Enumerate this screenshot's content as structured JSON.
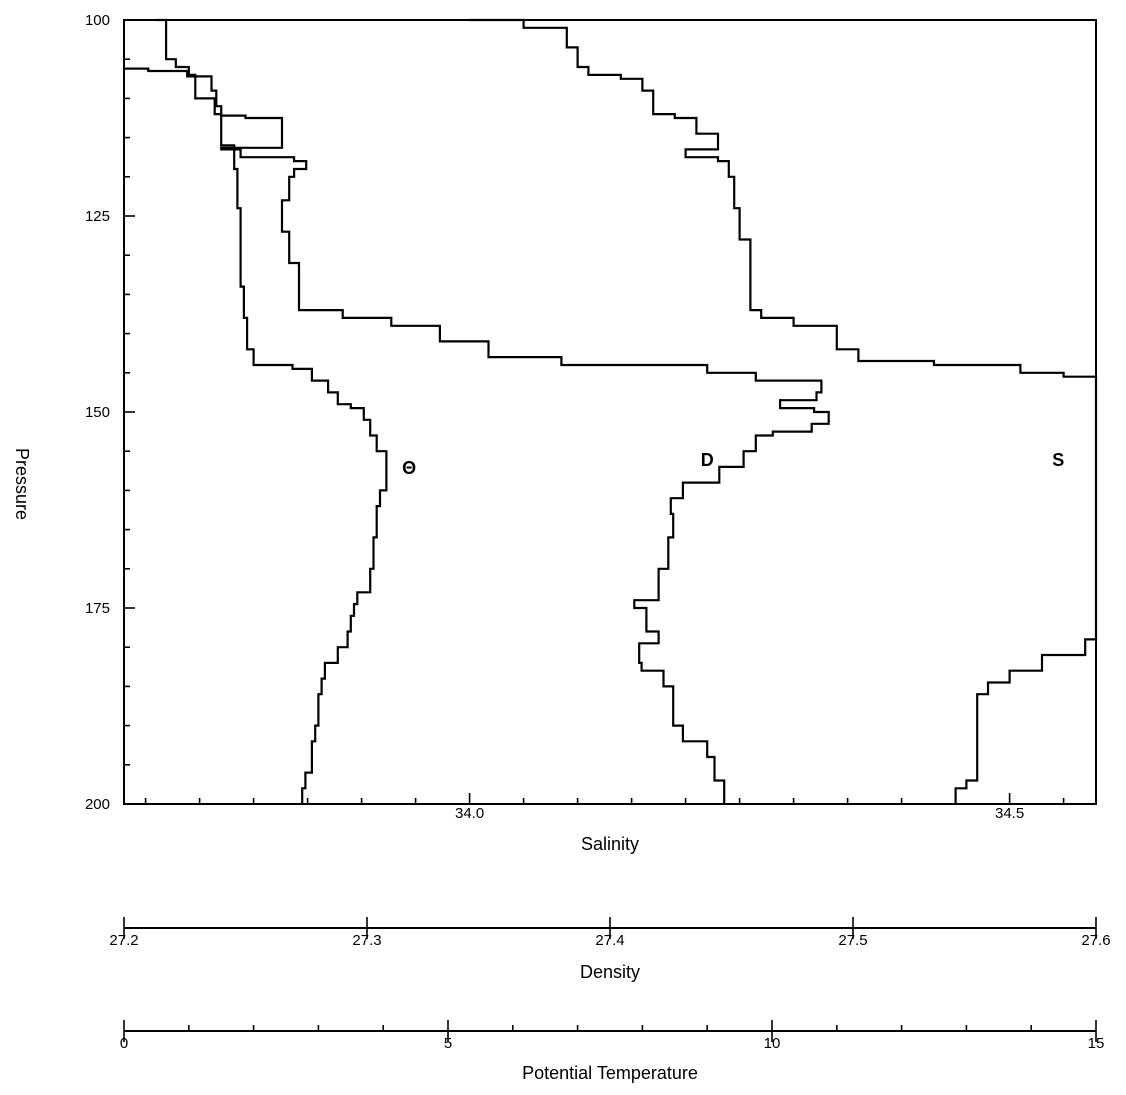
{
  "chart_data": {
    "type": "line",
    "grid": false,
    "pressure_axis": {
      "label": "Pressure",
      "range": [
        100,
        200
      ],
      "inverted": true,
      "ticks": [
        "100",
        "125",
        "150",
        "175",
        "200"
      ],
      "minor_step": 5
    },
    "salinity_axis": {
      "label": "Salinity",
      "range": [
        33.68,
        34.58
      ],
      "major_ticks": [
        34.0,
        34.5
      ],
      "tick_labels": [
        "34.0",
        "34.5"
      ],
      "minor_step": 0.05
    },
    "density_axis": {
      "label": "Density",
      "range": [
        27.2,
        27.6
      ],
      "ticks": [
        27.2,
        27.3,
        27.4,
        27.5,
        27.6
      ],
      "tick_labels": [
        "27.2",
        "27.3",
        "27.4",
        "27.5",
        "27.6"
      ]
    },
    "temperature_axis": {
      "label": "Potential Temperature",
      "range": [
        0,
        15
      ],
      "major_ticks": [
        0,
        5,
        10,
        15
      ],
      "tick_labels": [
        "0",
        "5",
        "10",
        "15"
      ],
      "minor_step": 1
    },
    "series": [
      {
        "name": "S",
        "axis": "salinity",
        "label_at": {
          "x": 34.545,
          "p": 156
        },
        "points": [
          [
            34.0,
            100
          ],
          [
            34.05,
            101
          ],
          [
            34.09,
            103.5
          ],
          [
            34.1,
            106
          ],
          [
            34.11,
            107
          ],
          [
            34.14,
            107.5
          ],
          [
            34.16,
            109
          ],
          [
            34.17,
            112
          ],
          [
            34.19,
            112.5
          ],
          [
            34.21,
            114.5
          ],
          [
            34.23,
            116.5
          ],
          [
            34.2,
            116.5
          ],
          [
            34.2,
            117.5
          ],
          [
            34.23,
            118
          ],
          [
            34.24,
            120
          ],
          [
            34.245,
            124
          ],
          [
            34.25,
            128
          ],
          [
            34.26,
            132
          ],
          [
            34.26,
            137
          ],
          [
            34.27,
            138
          ],
          [
            34.3,
            139
          ],
          [
            34.34,
            142
          ],
          [
            34.36,
            143.5
          ],
          [
            34.43,
            144
          ],
          [
            34.51,
            145
          ],
          [
            34.55,
            145.5
          ],
          [
            34.6,
            146.5
          ],
          [
            34.65,
            147.5
          ],
          [
            34.69,
            149
          ],
          [
            34.71,
            149.5
          ],
          [
            34.76,
            150.5
          ],
          [
            34.8,
            152
          ],
          [
            34.79,
            154
          ],
          [
            34.81,
            156
          ],
          [
            34.81,
            158
          ],
          [
            34.8,
            160.5
          ],
          [
            34.77,
            162
          ],
          [
            34.76,
            164
          ],
          [
            34.74,
            167
          ],
          [
            34.72,
            171
          ],
          [
            34.7,
            173
          ],
          [
            34.67,
            174.5
          ],
          [
            34.6,
            174.5
          ],
          [
            34.58,
            176
          ],
          [
            34.58,
            178
          ],
          [
            34.6,
            179
          ],
          [
            34.57,
            181
          ],
          [
            34.53,
            183
          ],
          [
            34.5,
            184.5
          ],
          [
            34.48,
            186
          ],
          [
            34.47,
            188
          ],
          [
            34.47,
            192
          ],
          [
            34.47,
            197
          ],
          [
            34.46,
            198
          ],
          [
            34.45,
            200
          ]
        ]
      },
      {
        "name": "D",
        "axis": "density",
        "label_at": {
          "x": 27.44,
          "p": 156
        },
        "points": [
          [
            27.2,
            106.2
          ],
          [
            27.21,
            106.5
          ],
          [
            27.226,
            107.2
          ],
          [
            27.236,
            109
          ],
          [
            27.238,
            111
          ],
          [
            27.24,
            112.2
          ],
          [
            27.25,
            112.5
          ],
          [
            27.265,
            114.5
          ],
          [
            27.265,
            116.3
          ],
          [
            27.24,
            116.5
          ],
          [
            27.248,
            117.5
          ],
          [
            27.27,
            118
          ],
          [
            27.275,
            119
          ],
          [
            27.27,
            120
          ],
          [
            27.268,
            123
          ],
          [
            27.265,
            127
          ],
          [
            27.268,
            131
          ],
          [
            27.272,
            133
          ],
          [
            27.272,
            137
          ],
          [
            27.29,
            138
          ],
          [
            27.31,
            139
          ],
          [
            27.33,
            141
          ],
          [
            27.35,
            143
          ],
          [
            27.38,
            144
          ],
          [
            27.42,
            144
          ],
          [
            27.44,
            145
          ],
          [
            27.46,
            146
          ],
          [
            27.487,
            147.5
          ],
          [
            27.485,
            148.5
          ],
          [
            27.47,
            149
          ],
          [
            27.47,
            149.5
          ],
          [
            27.484,
            150
          ],
          [
            27.49,
            151.5
          ],
          [
            27.483,
            152.5
          ],
          [
            27.467,
            153
          ],
          [
            27.46,
            155
          ],
          [
            27.455,
            157
          ],
          [
            27.445,
            159
          ],
          [
            27.43,
            161
          ],
          [
            27.425,
            163
          ],
          [
            27.426,
            166
          ],
          [
            27.424,
            170
          ],
          [
            27.42,
            174
          ],
          [
            27.41,
            175
          ],
          [
            27.415,
            178
          ],
          [
            27.42,
            179.5
          ],
          [
            27.412,
            182
          ],
          [
            27.413,
            183
          ],
          [
            27.422,
            185
          ],
          [
            27.426,
            190
          ],
          [
            27.43,
            192
          ],
          [
            27.44,
            194
          ],
          [
            27.443,
            197
          ],
          [
            27.447,
            200
          ]
        ]
      },
      {
        "name": "Θ",
        "axis": "temperature",
        "label_at": {
          "x": 4.4,
          "p": 157
        },
        "points": [
          [
            0.5,
            100
          ],
          [
            0.65,
            105
          ],
          [
            0.8,
            106
          ],
          [
            1.0,
            107
          ],
          [
            1.1,
            110
          ],
          [
            1.4,
            112
          ],
          [
            1.5,
            116
          ],
          [
            1.7,
            119
          ],
          [
            1.75,
            124
          ],
          [
            1.8,
            129
          ],
          [
            1.8,
            134
          ],
          [
            1.85,
            138
          ],
          [
            1.9,
            142
          ],
          [
            2.0,
            144
          ],
          [
            2.6,
            144.5
          ],
          [
            2.9,
            146
          ],
          [
            3.15,
            147.5
          ],
          [
            3.3,
            149
          ],
          [
            3.5,
            149.5
          ],
          [
            3.7,
            151
          ],
          [
            3.8,
            153
          ],
          [
            3.9,
            155
          ],
          [
            4.05,
            157
          ],
          [
            4.05,
            160
          ],
          [
            3.95,
            162
          ],
          [
            3.9,
            166
          ],
          [
            3.85,
            170
          ],
          [
            3.8,
            173
          ],
          [
            3.6,
            174.5
          ],
          [
            3.55,
            176
          ],
          [
            3.5,
            178
          ],
          [
            3.45,
            180
          ],
          [
            3.3,
            182
          ],
          [
            3.1,
            184
          ],
          [
            3.05,
            186
          ],
          [
            3.0,
            190
          ],
          [
            2.95,
            192
          ],
          [
            2.9,
            196
          ],
          [
            2.8,
            198
          ],
          [
            2.75,
            200
          ]
        ]
      }
    ]
  }
}
